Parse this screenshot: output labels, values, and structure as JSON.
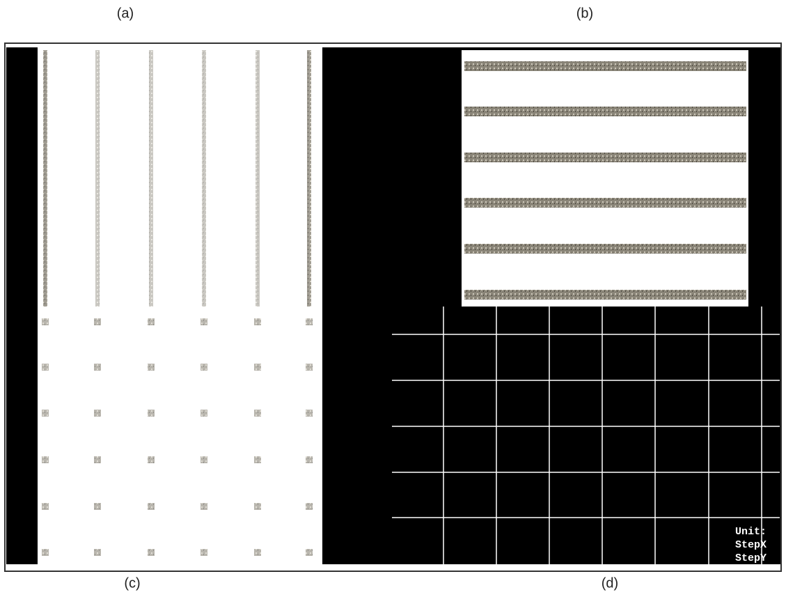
{
  "panels": [
    {
      "label": "(a)"
    },
    {
      "label": "(b)"
    },
    {
      "label": "(c)"
    },
    {
      "label": "(d)"
    }
  ],
  "overlay_text": [
    "Unit:",
    "StepX",
    "StepY"
  ]
}
